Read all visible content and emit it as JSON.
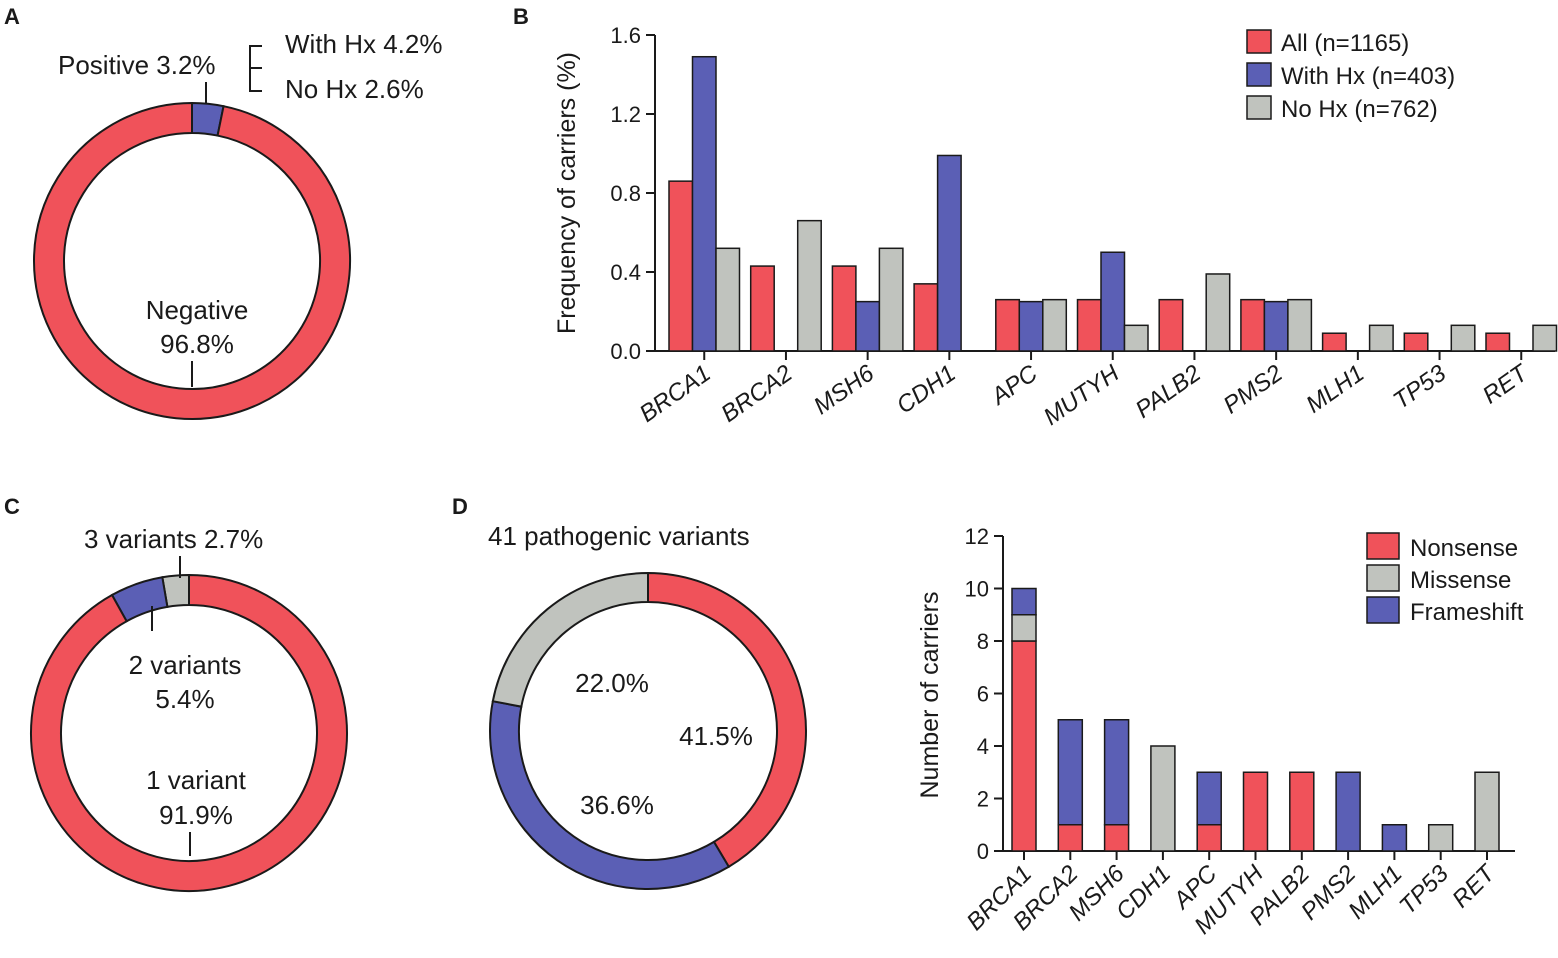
{
  "colors": {
    "red": "#f0525a",
    "blue": "#5b5fb5",
    "gray": "#c0c3be",
    "stroke": "#1a1a1a"
  },
  "panels": {
    "a": "A",
    "b": "B",
    "c": "C",
    "d": "D"
  },
  "chart_data": [
    {
      "id": "A",
      "type": "pie",
      "style": "donut",
      "slices": [
        {
          "name": "Positive",
          "value": 3.2,
          "color": "blue"
        },
        {
          "name": "Negative",
          "value": 96.8,
          "color": "red"
        }
      ],
      "labels": {
        "positive": "Positive 3.2%",
        "with_hx": "With Hx 4.2%",
        "no_hx": "No Hx 2.6%",
        "negative_line1": "Negative",
        "negative_line2": "96.8%"
      }
    },
    {
      "id": "B",
      "type": "bar",
      "categories": [
        "BRCA1",
        "BRCA2",
        "MSH6",
        "CDH1",
        "APC",
        "MUTYH",
        "PALB2",
        "PMS2",
        "MLH1",
        "TP53",
        "RET"
      ],
      "series": [
        {
          "name": "All (n=1165)",
          "color": "red",
          "values": [
            0.86,
            0.43,
            0.43,
            0.34,
            0.26,
            0.26,
            0.26,
            0.26,
            0.09,
            0.09,
            0.09
          ]
        },
        {
          "name": "With Hx (n=403)",
          "color": "blue",
          "values": [
            1.49,
            0,
            0.25,
            0.99,
            0.25,
            0.5,
            0,
            0.25,
            0,
            0,
            0
          ]
        },
        {
          "name": "No Hx (n=762)",
          "color": "gray",
          "values": [
            0.52,
            0.66,
            0.52,
            0,
            0.26,
            0.13,
            0.39,
            0.26,
            0.13,
            0.13,
            0.13
          ]
        }
      ],
      "title": "",
      "xlabel": "",
      "ylabel": "Frequency of carriers  (%)",
      "ylim": [
        0,
        1.6
      ],
      "yticks": [
        "0.0",
        "0.4",
        "0.8",
        "1.2",
        "1.6"
      ],
      "legend": "top-right"
    },
    {
      "id": "C",
      "type": "pie",
      "style": "donut",
      "slices": [
        {
          "name": "1 variant",
          "value": 91.9,
          "color": "red"
        },
        {
          "name": "2 variants",
          "value": 5.4,
          "color": "blue"
        },
        {
          "name": "3 variants",
          "value": 2.7,
          "color": "gray"
        }
      ],
      "labels": {
        "three": "3 variants 2.7%",
        "two_line1": "2 variants",
        "two_line2": "5.4%",
        "one_line1": "1 variant",
        "one_line2": "91.9%"
      }
    },
    {
      "id": "D-pie",
      "type": "pie",
      "style": "donut",
      "title": "41 pathogenic variants",
      "slices": [
        {
          "name": "Nonsense",
          "value": 41.5,
          "label": "41.5%",
          "color": "red"
        },
        {
          "name": "Frameshift",
          "value": 36.6,
          "label": "36.6%",
          "color": "blue"
        },
        {
          "name": "Missense",
          "value": 22.0,
          "label": "22.0%",
          "color": "gray"
        }
      ]
    },
    {
      "id": "D-bar",
      "type": "bar",
      "stacked": true,
      "categories": [
        "BRCA1",
        "BRCA2",
        "MSH6",
        "CDH1",
        "APC",
        "MUTYH",
        "PALB2",
        "PMS2",
        "MLH1",
        "TP53",
        "RET"
      ],
      "series": [
        {
          "name": "Nonsense",
          "color": "red",
          "values": [
            8,
            1,
            1,
            0,
            1,
            3,
            3,
            0,
            0,
            0,
            0
          ]
        },
        {
          "name": "Missense",
          "color": "gray",
          "values": [
            1,
            0,
            0,
            4,
            0,
            0,
            0,
            0,
            0,
            1,
            3
          ]
        },
        {
          "name": "Frameshift",
          "color": "blue",
          "values": [
            1,
            4,
            4,
            0,
            2,
            0,
            0,
            3,
            1,
            0,
            0
          ]
        }
      ],
      "ylabel": "Number of carriers",
      "ylim": [
        0,
        12
      ],
      "yticks": [
        "0",
        "2",
        "4",
        "6",
        "8",
        "10",
        "12"
      ],
      "legend": "top-right"
    }
  ]
}
